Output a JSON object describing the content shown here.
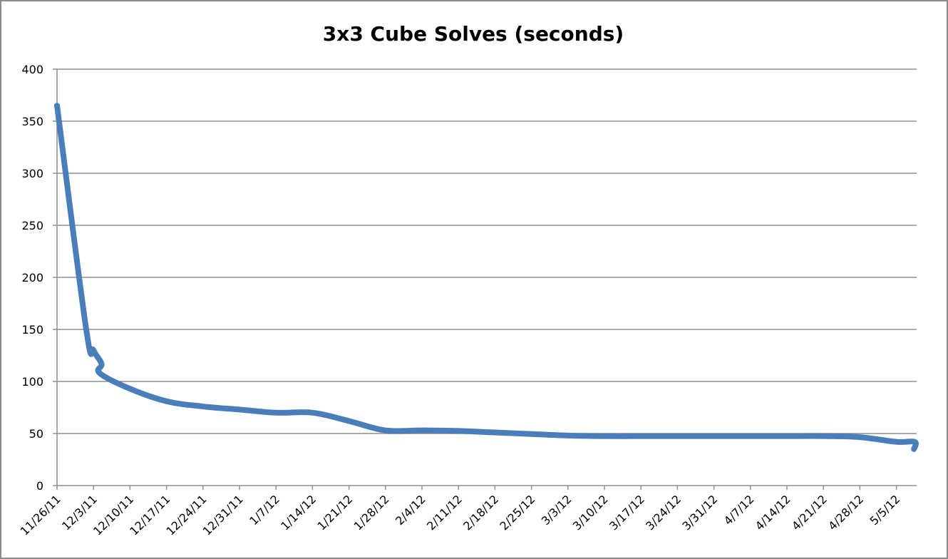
{
  "chart_data": {
    "type": "line",
    "title": "3x3 Cube Solves (seconds)",
    "xlabel": "",
    "ylabel": "",
    "ylim": [
      0,
      400
    ],
    "yticks": [
      0,
      50,
      100,
      150,
      200,
      250,
      300,
      350,
      400
    ],
    "grid": true,
    "legend": "none",
    "categories": [
      "11/26/11",
      "12/3/11",
      "12/10/11",
      "12/17/11",
      "12/24/11",
      "12/31/11",
      "1/7/12",
      "1/14/12",
      "1/21/12",
      "1/28/12",
      "2/4/12",
      "2/11/12",
      "2/18/12",
      "2/25/12",
      "3/3/12",
      "3/10/12",
      "3/17/12",
      "3/24/12",
      "3/31/12",
      "4/7/12",
      "4/14/12",
      "4/21/12",
      "4/28/12",
      "5/5/12"
    ],
    "series": [
      {
        "name": "3x3 Cube Solves",
        "color": "#4a7ebb",
        "points": [
          {
            "x": "11/26/11",
            "y": 365
          },
          {
            "x": "12/1/11",
            "y": 150
          },
          {
            "x": "12/3/11",
            "y": 130
          },
          {
            "x": "12/5/11",
            "y": 117
          },
          {
            "x": "12/5/11",
            "y": 108
          },
          {
            "x": "12/10/11",
            "y": 93
          },
          {
            "x": "12/17/11",
            "y": 81
          },
          {
            "x": "12/24/11",
            "y": 76
          },
          {
            "x": "12/31/11",
            "y": 73
          },
          {
            "x": "1/7/12",
            "y": 70
          },
          {
            "x": "1/14/12",
            "y": 70
          },
          {
            "x": "1/21/12",
            "y": 62
          },
          {
            "x": "1/28/12",
            "y": 53
          },
          {
            "x": "2/4/12",
            "y": 53
          },
          {
            "x": "2/11/12",
            "y": 52.5
          },
          {
            "x": "2/18/12",
            "y": 51
          },
          {
            "x": "2/25/12",
            "y": 49.5
          },
          {
            "x": "3/3/12",
            "y": 48
          },
          {
            "x": "3/10/12",
            "y": 47.5
          },
          {
            "x": "3/17/12",
            "y": 47.5
          },
          {
            "x": "3/24/12",
            "y": 47.5
          },
          {
            "x": "3/31/12",
            "y": 47.5
          },
          {
            "x": "4/7/12",
            "y": 47.5
          },
          {
            "x": "4/14/12",
            "y": 47.5
          },
          {
            "x": "4/21/12",
            "y": 47.5
          },
          {
            "x": "4/28/12",
            "y": 46.5
          },
          {
            "x": "5/5/12",
            "y": 42
          },
          {
            "x": "5/9/12",
            "y": 42
          },
          {
            "x": "5/9/12",
            "y": 35
          }
        ],
        "x_weeks": [
          0,
          0.8,
          1.0,
          1.22,
          1.17,
          2,
          3,
          4,
          5,
          6,
          7,
          8,
          9,
          10,
          11,
          12,
          13,
          14,
          15,
          16,
          17,
          18,
          19,
          20,
          21,
          22,
          23,
          23.5,
          23.48
        ]
      }
    ]
  }
}
